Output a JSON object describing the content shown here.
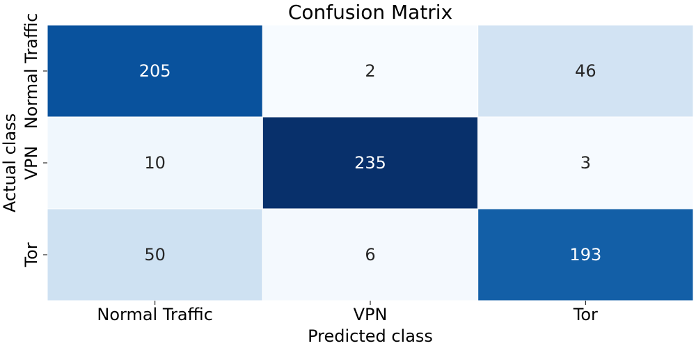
{
  "chart_data": {
    "type": "heatmap",
    "title": "Confusion Matrix",
    "xlabel": "Predicted class",
    "ylabel": "Actual class",
    "x_categories": [
      "Normal Traffic",
      "VPN",
      "Tor"
    ],
    "y_categories": [
      "Normal Traffic",
      "VPN",
      "Tor"
    ],
    "matrix": [
      [
        205,
        2,
        46
      ],
      [
        10,
        235,
        3
      ],
      [
        50,
        6,
        193
      ]
    ],
    "colormap": "Blues",
    "colorbar": false,
    "grid": false
  }
}
